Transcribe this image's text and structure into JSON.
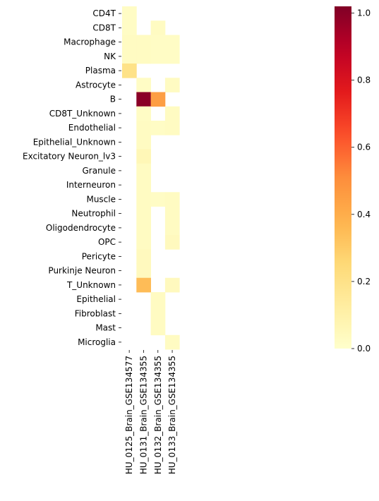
{
  "chart_data": {
    "type": "heatmap",
    "title": "",
    "xlabel": "",
    "ylabel": "",
    "rows": [
      "CD4T",
      "CD8T",
      "Macrophage",
      "NK",
      "Plasma",
      "Astrocyte",
      "B",
      "CD8T_Unknown",
      "Endothelial",
      "Epithelial_Unknown",
      "Excitatory Neuron_lv3",
      "Granule",
      "Interneuron",
      "Muscle",
      "Neutrophil",
      "Oligodendrocyte",
      "OPC",
      "Pericyte",
      "Purkinje Neuron",
      "T_Unknown",
      "Epithelial",
      "Fibroblast",
      "Mast",
      "Microglia"
    ],
    "columns": [
      "HU_0125_Brain_GSE134577",
      "HU_0131_Brain_GSE134355",
      "HU_0132_Brain_GSE134355",
      "HU_0133_Brain_GSE134355"
    ],
    "values": [
      [
        0.02,
        null,
        null,
        null
      ],
      [
        0.02,
        null,
        0.03,
        null
      ],
      [
        0.03,
        0.03,
        0.02,
        0.02
      ],
      [
        0.03,
        0.03,
        0.02,
        0.02
      ],
      [
        0.2,
        null,
        null,
        null
      ],
      [
        null,
        0.02,
        null,
        0.03
      ],
      [
        null,
        1.0,
        0.45,
        null
      ],
      [
        null,
        0.02,
        null,
        0.03
      ],
      [
        null,
        0.03,
        0.02,
        0.03
      ],
      [
        null,
        0.03,
        null,
        null
      ],
      [
        null,
        0.06,
        null,
        null
      ],
      [
        null,
        0.03,
        null,
        null
      ],
      [
        null,
        0.03,
        null,
        null
      ],
      [
        null,
        0.03,
        0.02,
        0.03
      ],
      [
        null,
        0.03,
        null,
        0.03
      ],
      [
        null,
        0.03,
        null,
        0.03
      ],
      [
        null,
        0.03,
        null,
        0.04
      ],
      [
        null,
        0.04,
        null,
        null
      ],
      [
        null,
        0.04,
        null,
        null
      ],
      [
        null,
        0.35,
        null,
        0.04
      ],
      [
        null,
        null,
        0.03,
        null
      ],
      [
        null,
        null,
        0.03,
        null
      ],
      [
        null,
        null,
        0.03,
        null
      ],
      [
        null,
        null,
        null,
        0.03
      ]
    ],
    "colorscale": "YlOrRd",
    "vmin": 0.0,
    "vmax": 1.02,
    "colorbar_ticks": [
      "0.0",
      "0.2",
      "0.4",
      "0.6",
      "0.8",
      "1.0"
    ],
    "colorbar_tick_values": [
      0.0,
      0.2,
      0.4,
      0.6,
      0.8,
      1.0
    ]
  }
}
